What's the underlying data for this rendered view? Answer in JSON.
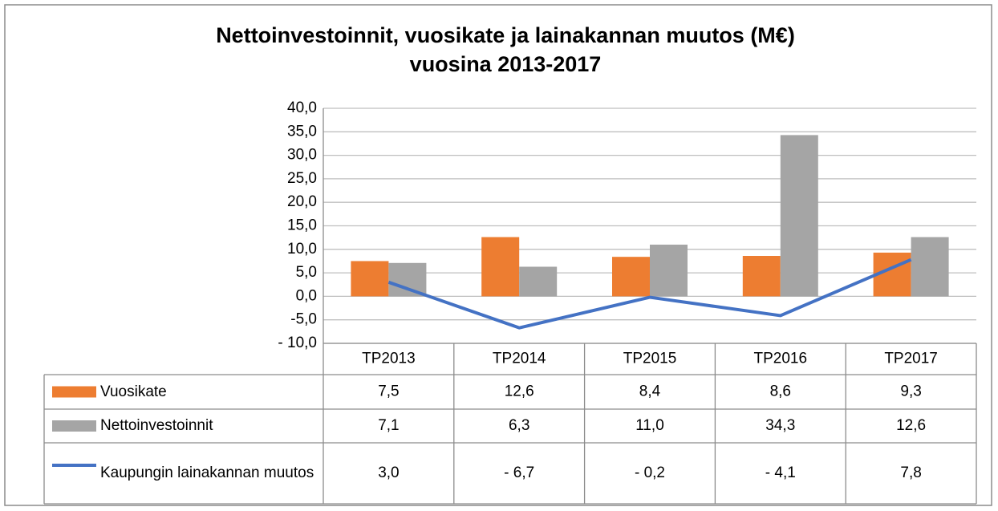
{
  "chart_data": {
    "type": "bar_line_table",
    "title": [
      "Nettoinvestoinnit, vuosikate ja lainakannan muutos (M€)",
      "vuosina 2013-2017"
    ],
    "categories": [
      "TP2013",
      "TP2014",
      "TP2015",
      "TP2016",
      "TP2017"
    ],
    "series": [
      {
        "name": "Vuosikate",
        "type": "bar",
        "color": "#ED7D31",
        "values": [
          7.5,
          12.6,
          8.4,
          8.6,
          9.3
        ],
        "value_labels": [
          "7,5",
          "12,6",
          "8,4",
          "8,6",
          "9,3"
        ]
      },
      {
        "name": "Nettoinvestoinnit",
        "type": "bar",
        "color": "#A5A5A5",
        "values": [
          7.1,
          6.3,
          11.0,
          34.3,
          12.6
        ],
        "value_labels": [
          "7,1",
          "6,3",
          "11,0",
          "34,3",
          "12,6"
        ]
      },
      {
        "name": "Kaupungin lainakannan muutos",
        "type": "line",
        "color": "#4472C4",
        "values": [
          3.0,
          -6.7,
          -0.2,
          -4.1,
          7.8
        ],
        "value_labels": [
          "3,0",
          "- 6,7",
          "- 0,2",
          "- 4,1",
          "7,8"
        ]
      }
    ],
    "ylim": [
      -10,
      40
    ],
    "yticks": [
      {
        "value": -10,
        "label": "- 10,0"
      },
      {
        "value": -5,
        "label": "-5,0"
      },
      {
        "value": 0,
        "label": "0,0"
      },
      {
        "value": 5,
        "label": "5,0"
      },
      {
        "value": 10,
        "label": "10,0"
      },
      {
        "value": 15,
        "label": "15,0"
      },
      {
        "value": 20,
        "label": "20,0"
      },
      {
        "value": 25,
        "label": "25,0"
      },
      {
        "value": 30,
        "label": "30,0"
      },
      {
        "value": 35,
        "label": "35,0"
      },
      {
        "value": 40,
        "label": "40,0"
      }
    ],
    "grid": true
  }
}
